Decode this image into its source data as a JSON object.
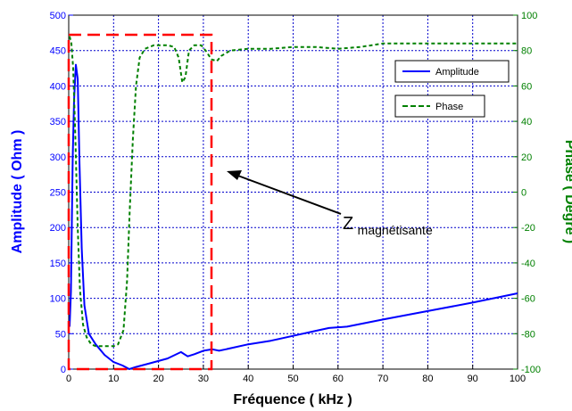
{
  "chart_data": {
    "type": "line",
    "title": "",
    "xlabel": "Fréquence ( kHz )",
    "ylabel_left": "Amplitude ( Ohm )",
    "ylabel_right": "Phase ( Degré )",
    "xlim": [
      0,
      100
    ],
    "ylim_left": [
      0,
      500
    ],
    "ylim_right": [
      -100,
      100
    ],
    "grid": true,
    "legend_position": "top-right",
    "x_ticks": [
      0,
      10,
      20,
      30,
      40,
      50,
      60,
      70,
      80,
      90,
      100
    ],
    "y_left_ticks": [
      0,
      50,
      100,
      150,
      200,
      250,
      300,
      350,
      400,
      450,
      500
    ],
    "y_right_ticks": [
      -100,
      -80,
      -60,
      -40,
      -20,
      0,
      20,
      40,
      60,
      80,
      100
    ],
    "series": [
      {
        "name": "Amplitude",
        "axis": "left",
        "color": "#0000ff",
        "style": "solid",
        "points": [
          [
            0.2,
            60
          ],
          [
            0.5,
            110
          ],
          [
            0.9,
            300
          ],
          [
            1.2,
            380
          ],
          [
            1.6,
            430
          ],
          [
            2.0,
            410
          ],
          [
            2.4,
            290
          ],
          [
            2.9,
            170
          ],
          [
            3.5,
            90
          ],
          [
            4.5,
            50
          ],
          [
            6,
            35
          ],
          [
            8,
            20
          ],
          [
            10,
            10
          ],
          [
            12,
            5
          ],
          [
            13.5,
            0
          ],
          [
            15,
            3
          ],
          [
            18,
            8
          ],
          [
            22,
            15
          ],
          [
            25,
            24
          ],
          [
            26.5,
            18
          ],
          [
            28,
            21
          ],
          [
            30,
            26
          ],
          [
            32,
            28
          ],
          [
            33.5,
            26
          ],
          [
            35,
            28
          ],
          [
            40,
            35
          ],
          [
            45,
            40
          ],
          [
            50,
            47
          ],
          [
            55,
            54
          ],
          [
            58,
            58
          ],
          [
            62,
            60
          ],
          [
            70,
            70
          ],
          [
            80,
            82
          ],
          [
            90,
            94
          ],
          [
            100,
            107
          ]
        ]
      },
      {
        "name": "Phase",
        "axis": "right",
        "color": "#008000",
        "style": "dashed",
        "points": [
          [
            0.2,
            88
          ],
          [
            0.6,
            84
          ],
          [
            1.0,
            70
          ],
          [
            1.5,
            30
          ],
          [
            2.0,
            -20
          ],
          [
            2.5,
            -55
          ],
          [
            3.2,
            -75
          ],
          [
            4.0,
            -82
          ],
          [
            5.0,
            -86
          ],
          [
            6,
            -87
          ],
          [
            8,
            -87
          ],
          [
            10,
            -87
          ],
          [
            11,
            -86
          ],
          [
            12.2,
            -78
          ],
          [
            13,
            -50
          ],
          [
            13.6,
            -10
          ],
          [
            14.3,
            30
          ],
          [
            15,
            60
          ],
          [
            15.8,
            76
          ],
          [
            17,
            81
          ],
          [
            19,
            83
          ],
          [
            22,
            83
          ],
          [
            23.5,
            82
          ],
          [
            24.5,
            76
          ],
          [
            25.3,
            62
          ],
          [
            26,
            65
          ],
          [
            26.8,
            80
          ],
          [
            28,
            83
          ],
          [
            29.5,
            83
          ],
          [
            30.5,
            80
          ],
          [
            31.8,
            75
          ],
          [
            33,
            74
          ],
          [
            34,
            77
          ],
          [
            36,
            80
          ],
          [
            40,
            81
          ],
          [
            45,
            81
          ],
          [
            50,
            82
          ],
          [
            55,
            82
          ],
          [
            60,
            81
          ],
          [
            65,
            82
          ],
          [
            70,
            84
          ],
          [
            80,
            84
          ],
          [
            90,
            84
          ],
          [
            100,
            84
          ]
        ]
      }
    ],
    "annotations": [
      {
        "text_main": "Z",
        "text_sub": "magnétisante"
      }
    ]
  }
}
